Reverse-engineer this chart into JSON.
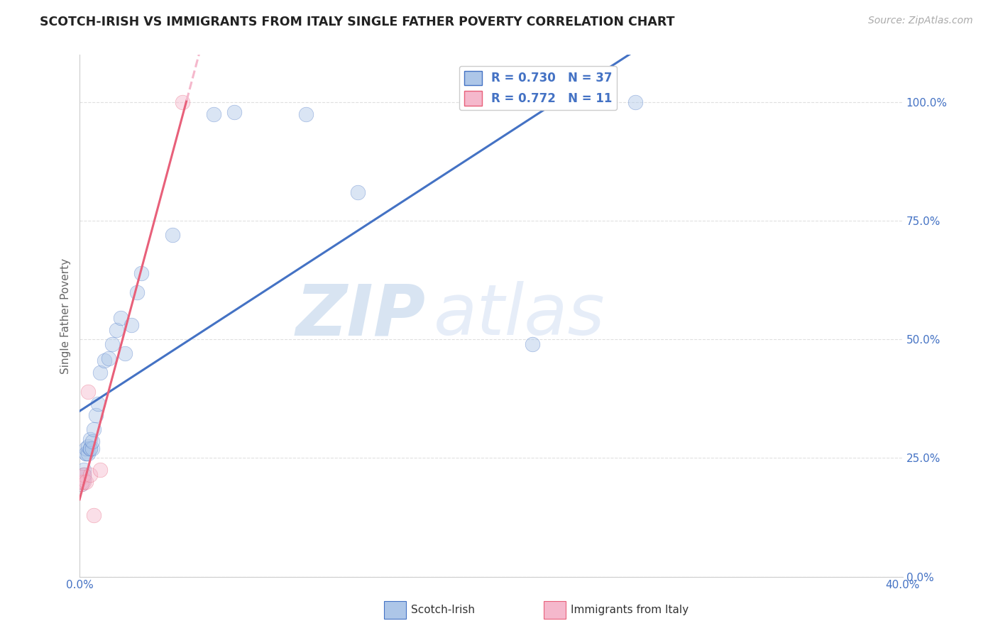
{
  "title": "SCOTCH-IRISH VS IMMIGRANTS FROM ITALY SINGLE FATHER POVERTY CORRELATION CHART",
  "source": "Source: ZipAtlas.com",
  "ylabel": "Single Father Poverty",
  "legend_r1": "R = 0.730",
  "legend_n1": "N = 37",
  "legend_r2": "R = 0.772",
  "legend_n2": "N = 11",
  "legend_label1": "Scotch-Irish",
  "legend_label2": "Immigrants from Italy",
  "watermark_zip": "ZIP",
  "watermark_atlas": "atlas",
  "scotch_irish_x": [
    0.001,
    0.001,
    0.001,
    0.002,
    0.002,
    0.002,
    0.002,
    0.003,
    0.003,
    0.003,
    0.004,
    0.004,
    0.005,
    0.005,
    0.005,
    0.006,
    0.006,
    0.007,
    0.008,
    0.009,
    0.01,
    0.012,
    0.014,
    0.016,
    0.018,
    0.02,
    0.022,
    0.025,
    0.028,
    0.03,
    0.045,
    0.065,
    0.075,
    0.11,
    0.135,
    0.22,
    0.27
  ],
  "scotch_irish_y": [
    0.195,
    0.2,
    0.21,
    0.205,
    0.21,
    0.225,
    0.215,
    0.26,
    0.26,
    0.27,
    0.26,
    0.275,
    0.27,
    0.27,
    0.29,
    0.27,
    0.285,
    0.31,
    0.34,
    0.365,
    0.43,
    0.455,
    0.46,
    0.49,
    0.52,
    0.545,
    0.47,
    0.53,
    0.6,
    0.64,
    0.72,
    0.975,
    0.98,
    0.975,
    0.81,
    0.49,
    1.0
  ],
  "italy_x": [
    0.001,
    0.001,
    0.001,
    0.002,
    0.002,
    0.003,
    0.004,
    0.005,
    0.007,
    0.01,
    0.05
  ],
  "italy_y": [
    0.195,
    0.2,
    0.21,
    0.2,
    0.215,
    0.2,
    0.39,
    0.215,
    0.13,
    0.225,
    1.0
  ],
  "blue_color": "#adc6e8",
  "pink_color": "#f5b8cc",
  "blue_line_color": "#4472c4",
  "pink_line_color": "#e8607a",
  "pink_dash_color": "#f5b8cc",
  "legend_text_color": "#4472c4",
  "title_color": "#222222",
  "source_color": "#aaaaaa",
  "ylabel_color": "#666666",
  "axis_tick_color": "#4472c4",
  "grid_color": "#e0e0e0",
  "background_color": "#ffffff",
  "xlim": [
    0.0,
    0.4
  ],
  "ylim": [
    0.0,
    1.1
  ],
  "yticks": [
    0.0,
    0.25,
    0.5,
    0.75,
    1.0
  ],
  "ytick_labels": [
    "0.0%",
    "25.0%",
    "50.0%",
    "75.0%",
    "100.0%"
  ],
  "xtick_labels": [
    "0.0%",
    "",
    "",
    "",
    "",
    "",
    "",
    "",
    "40.0%"
  ],
  "marker_size": 220,
  "marker_alpha": 0.45,
  "line_width": 2.2,
  "blue_line_x_start": 0.0,
  "blue_line_x_end": 0.3,
  "pink_line_solid_x_start": 0.0,
  "pink_line_solid_x_end": 0.052,
  "pink_line_dash_x_start": 0.052,
  "pink_line_dash_x_end": 0.1
}
